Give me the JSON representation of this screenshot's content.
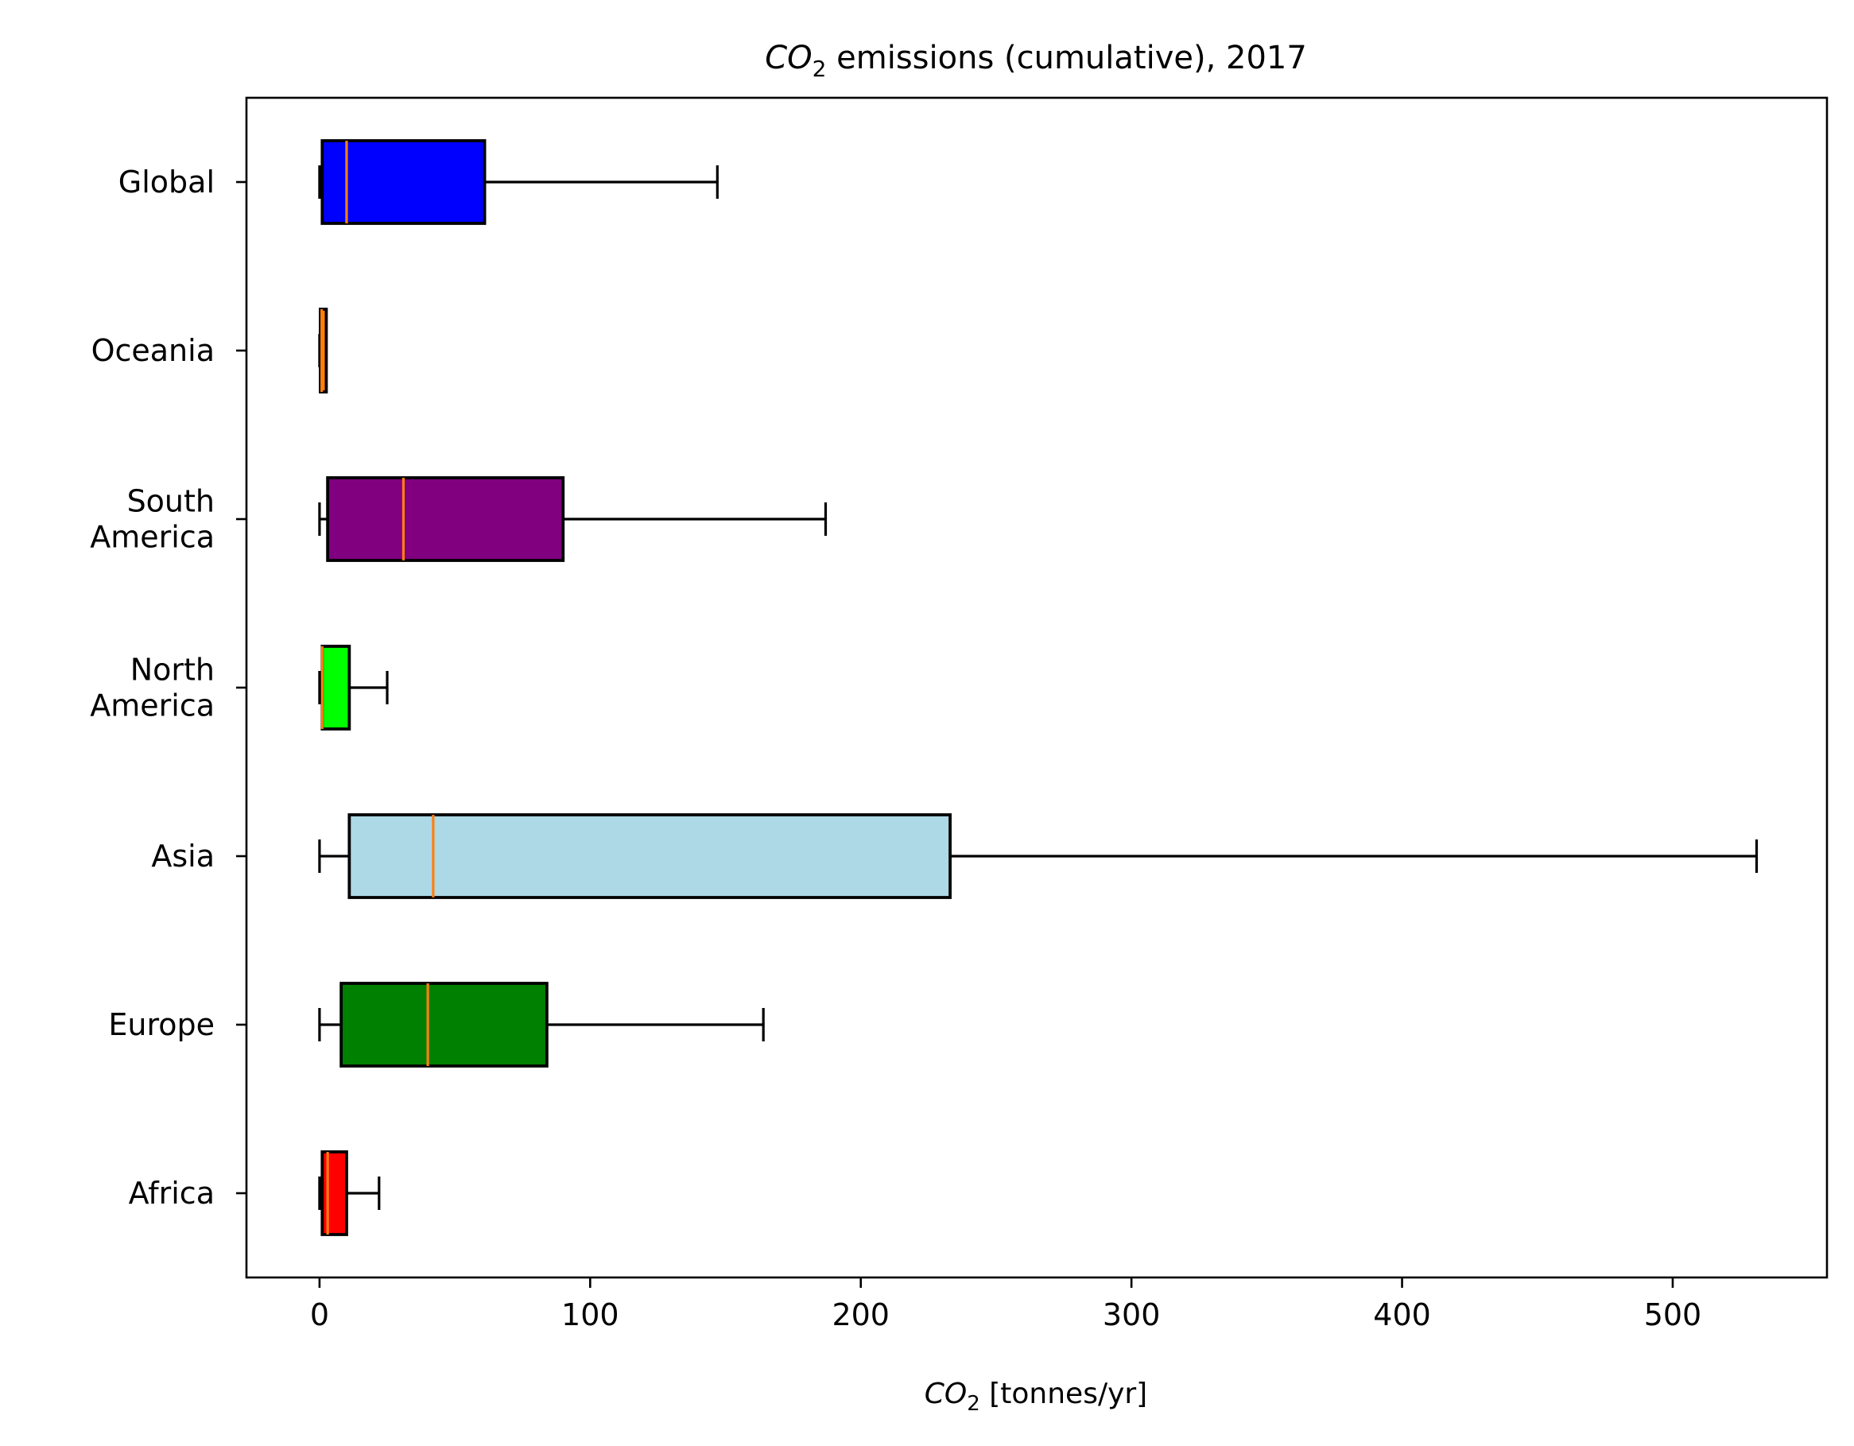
{
  "chart_data": {
    "type": "boxplot",
    "orientation": "horizontal",
    "title": {
      "prefix": "CO",
      "subscript": "2",
      "suffix": " emissions (cumulative), 2017"
    },
    "xlabel": {
      "prefix": "CO",
      "subscript": "2",
      "suffix": " [tonnes/yr]"
    },
    "ylabel": "",
    "xlim": [
      -27,
      557
    ],
    "xticks": [
      0,
      100,
      200,
      300,
      400,
      500
    ],
    "xtick_labels": [
      "0",
      "100",
      "200",
      "300",
      "400",
      "500"
    ],
    "grid": false,
    "legend": "none",
    "median_color": "#ff7f0e",
    "categories": [
      {
        "label_lines": [
          "Africa"
        ],
        "whisker_low": 0,
        "q1": 1,
        "median": 3,
        "q3": 10,
        "whisker_high": 22,
        "color": "#ff0000"
      },
      {
        "label_lines": [
          "Europe"
        ],
        "whisker_low": 0,
        "q1": 8,
        "median": 40,
        "q3": 84,
        "whisker_high": 164,
        "color": "#008000"
      },
      {
        "label_lines": [
          "Asia"
        ],
        "whisker_low": 0,
        "q1": 11,
        "median": 42,
        "q3": 233,
        "whisker_high": 531,
        "color": "#add8e6"
      },
      {
        "label_lines": [
          "North",
          "America"
        ],
        "whisker_low": 0,
        "q1": 1,
        "median": 1,
        "q3": 11,
        "whisker_high": 25,
        "color": "#00ff00"
      },
      {
        "label_lines": [
          "South",
          "America"
        ],
        "whisker_low": 0,
        "q1": 3,
        "median": 31,
        "q3": 90,
        "whisker_high": 187,
        "color": "#800080"
      },
      {
        "label_lines": [
          "Oceania"
        ],
        "whisker_low": 0,
        "q1": 0.3,
        "median": 0.8,
        "q3": 2.5,
        "whisker_high": 2.5,
        "color": "#ff7f0e"
      },
      {
        "label_lines": [
          "Global"
        ],
        "whisker_low": 0,
        "q1": 1,
        "median": 10,
        "q3": 61,
        "whisker_high": 147,
        "color": "#0000ff"
      }
    ]
  }
}
